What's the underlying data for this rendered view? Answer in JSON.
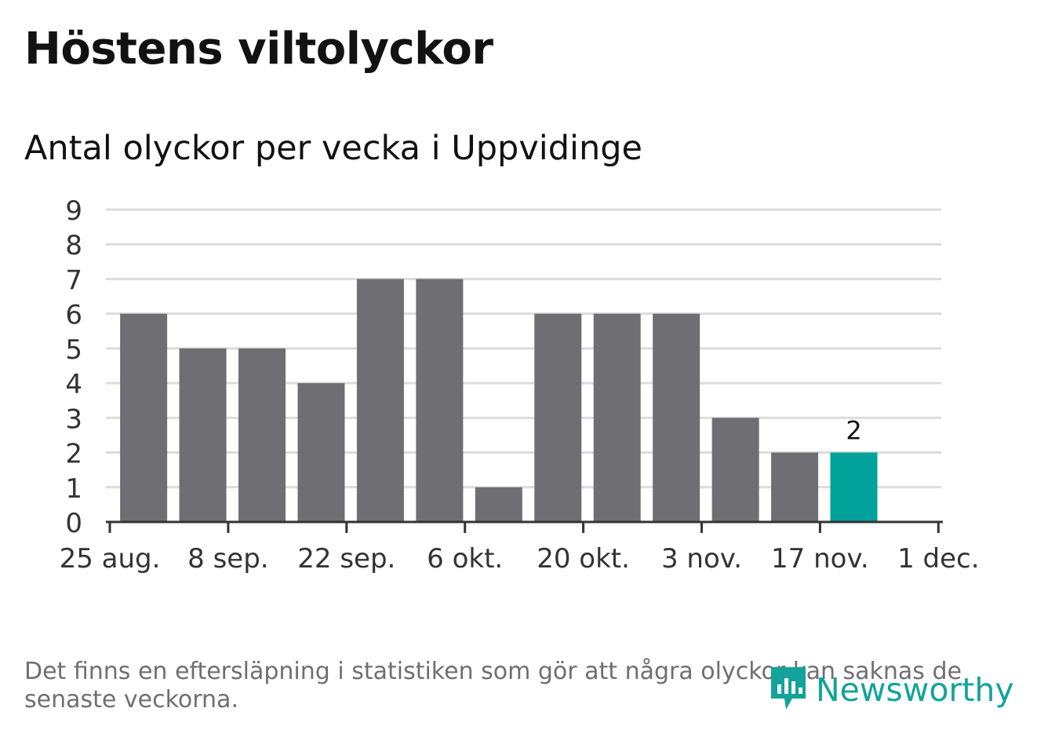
{
  "header": {
    "title": "Höstens viltolyckor",
    "subtitle": "Antal olyckor per vecka i Uppvidinge"
  },
  "footer": {
    "note": "Det finns en eftersläpning i statistiken som gör att några olyckor kan saknas de senaste veckorna.",
    "brand": "Newsworthy",
    "brand_icon": "chart-bubble-icon"
  },
  "colors": {
    "bar": "#6f6e73",
    "highlight": "#00a29a",
    "grid": "#dcdcdc",
    "axis": "#333333",
    "text": "#333333",
    "brand": "#13a39a"
  },
  "chart_data": {
    "type": "bar",
    "x_unit": "week",
    "x_tick_labels": [
      "25 aug.",
      "8 sep.",
      "22 sep.",
      "6 okt.",
      "20 okt.",
      "3 nov.",
      "17 nov.",
      "1 dec."
    ],
    "bars": [
      {
        "week_start": "2019-08-26",
        "value": 6
      },
      {
        "week_start": "2019-09-02",
        "value": 5
      },
      {
        "week_start": "2019-09-09",
        "value": 5
      },
      {
        "week_start": "2019-09-16",
        "value": 4
      },
      {
        "week_start": "2019-09-23",
        "value": 7
      },
      {
        "week_start": "2019-09-30",
        "value": 7
      },
      {
        "week_start": "2019-10-07",
        "value": 1
      },
      {
        "week_start": "2019-10-14",
        "value": 6
      },
      {
        "week_start": "2019-10-21",
        "value": 6
      },
      {
        "week_start": "2019-10-28",
        "value": 6
      },
      {
        "week_start": "2019-11-04",
        "value": 3
      },
      {
        "week_start": "2019-11-11",
        "value": 2
      },
      {
        "week_start": "2019-11-18",
        "value": 2,
        "highlight": true,
        "label": "2"
      }
    ],
    "ylim": [
      0,
      9
    ],
    "y_ticks": [
      0,
      1,
      2,
      3,
      4,
      5,
      6,
      7,
      8,
      9
    ],
    "grid": true,
    "xlabel": "",
    "ylabel": ""
  }
}
